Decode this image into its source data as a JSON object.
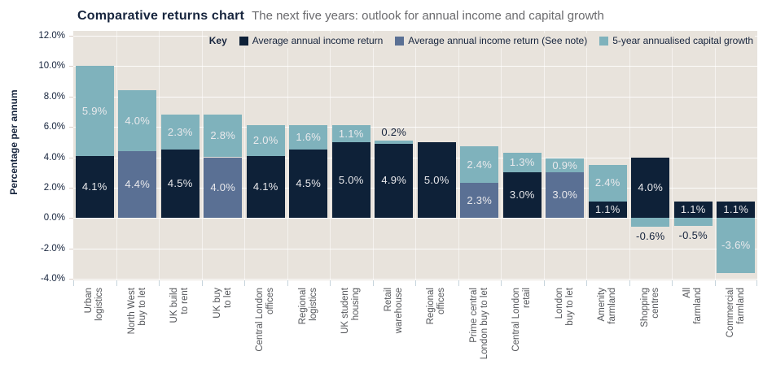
{
  "header": {
    "title": "Comparative returns chart",
    "subtitle": "The next five years: outlook for annual income and capital growth"
  },
  "chart_data": {
    "type": "bar",
    "stacked": true,
    "title": "Comparative returns chart",
    "subtitle": "The next five years: outlook for annual income and capital growth",
    "ylabel": "Percentage per annum",
    "ylim": [
      -4,
      12
    ],
    "ytick_step": 2,
    "yticks": [
      "12.0%",
      "10.0%",
      "8.0%",
      "6.0%",
      "4.0%",
      "2.0%",
      "0.0%",
      "-2.0%",
      "-4.0%"
    ],
    "grid": true,
    "legend_title": "Key",
    "legend_position": "top-right-inside",
    "series": [
      {
        "key": "standard",
        "name": "Average annual income return",
        "color": "#0e2138"
      },
      {
        "key": "note",
        "name": "Average annual income return (See note)",
        "color": "#5a7094"
      },
      {
        "key": "growth",
        "name": "5-year annualised capital growth",
        "color": "#7fb2bc"
      }
    ],
    "bars": [
      {
        "category": "Urban logistics",
        "label_lines": [
          "Urban",
          "logistics"
        ],
        "income": 4.1,
        "income_series": "standard",
        "growth": 5.9
      },
      {
        "category": "North West buy to let",
        "label_lines": [
          "North West",
          "buy to let"
        ],
        "income": 4.4,
        "income_series": "note",
        "growth": 4.0
      },
      {
        "category": "UK build to rent",
        "label_lines": [
          "UK build",
          "to rent"
        ],
        "income": 4.5,
        "income_series": "standard",
        "growth": 2.3
      },
      {
        "category": "UK buy to let",
        "label_lines": [
          "UK buy",
          "to let"
        ],
        "income": 4.0,
        "income_series": "note",
        "growth": 2.8
      },
      {
        "category": "Central London offices",
        "label_lines": [
          "Central London",
          "offices"
        ],
        "income": 4.1,
        "income_series": "standard",
        "growth": 2.0
      },
      {
        "category": "Regional logistics",
        "label_lines": [
          "Regional",
          "logistics"
        ],
        "income": 4.5,
        "income_series": "standard",
        "growth": 1.6
      },
      {
        "category": "UK student housing",
        "label_lines": [
          "UK student",
          "housing"
        ],
        "income": 5.0,
        "income_series": "standard",
        "growth": 1.1
      },
      {
        "category": "Retail warehouse",
        "label_lines": [
          "Retail",
          "warehouse"
        ],
        "income": 4.9,
        "income_series": "standard",
        "growth": 0.2
      },
      {
        "category": "Regional offices",
        "label_lines": [
          "Regional",
          "offices"
        ],
        "income": 5.0,
        "income_series": "standard",
        "growth": null
      },
      {
        "category": "Prime central London buy to let",
        "label_lines": [
          "Prime central",
          "London buy to let"
        ],
        "income": 2.3,
        "income_series": "note",
        "growth": 2.4
      },
      {
        "category": "Central London retail",
        "label_lines": [
          "Central London",
          "retail"
        ],
        "income": 3.0,
        "income_series": "standard",
        "growth": 1.3
      },
      {
        "category": "London buy to let",
        "label_lines": [
          "London",
          "buy to let"
        ],
        "income": 3.0,
        "income_series": "note",
        "growth": 0.9
      },
      {
        "category": "Amenity farmland",
        "label_lines": [
          "Amenity",
          "farmland"
        ],
        "income": 1.1,
        "income_series": "standard",
        "growth": 2.4
      },
      {
        "category": "Shopping centres",
        "label_lines": [
          "Shopping",
          "centres"
        ],
        "income": 4.0,
        "income_series": "standard",
        "growth": -0.6
      },
      {
        "category": "All farmland",
        "label_lines": [
          "All",
          "farmland"
        ],
        "income": 1.1,
        "income_series": "standard",
        "growth": -0.5
      },
      {
        "category": "Commercial farmland",
        "label_lines": [
          "Commercial",
          "farmland"
        ],
        "income": 1.1,
        "income_series": "standard",
        "growth": -3.6
      }
    ],
    "colors": {
      "plot_background": "#e8e3dc",
      "gridline": "#ffffff",
      "label_on_bar": "#e9e9ec",
      "label_dark": "#16243d",
      "category_label": "#54565a",
      "title": "#16243d",
      "subtitle": "#6b6b6e"
    }
  }
}
